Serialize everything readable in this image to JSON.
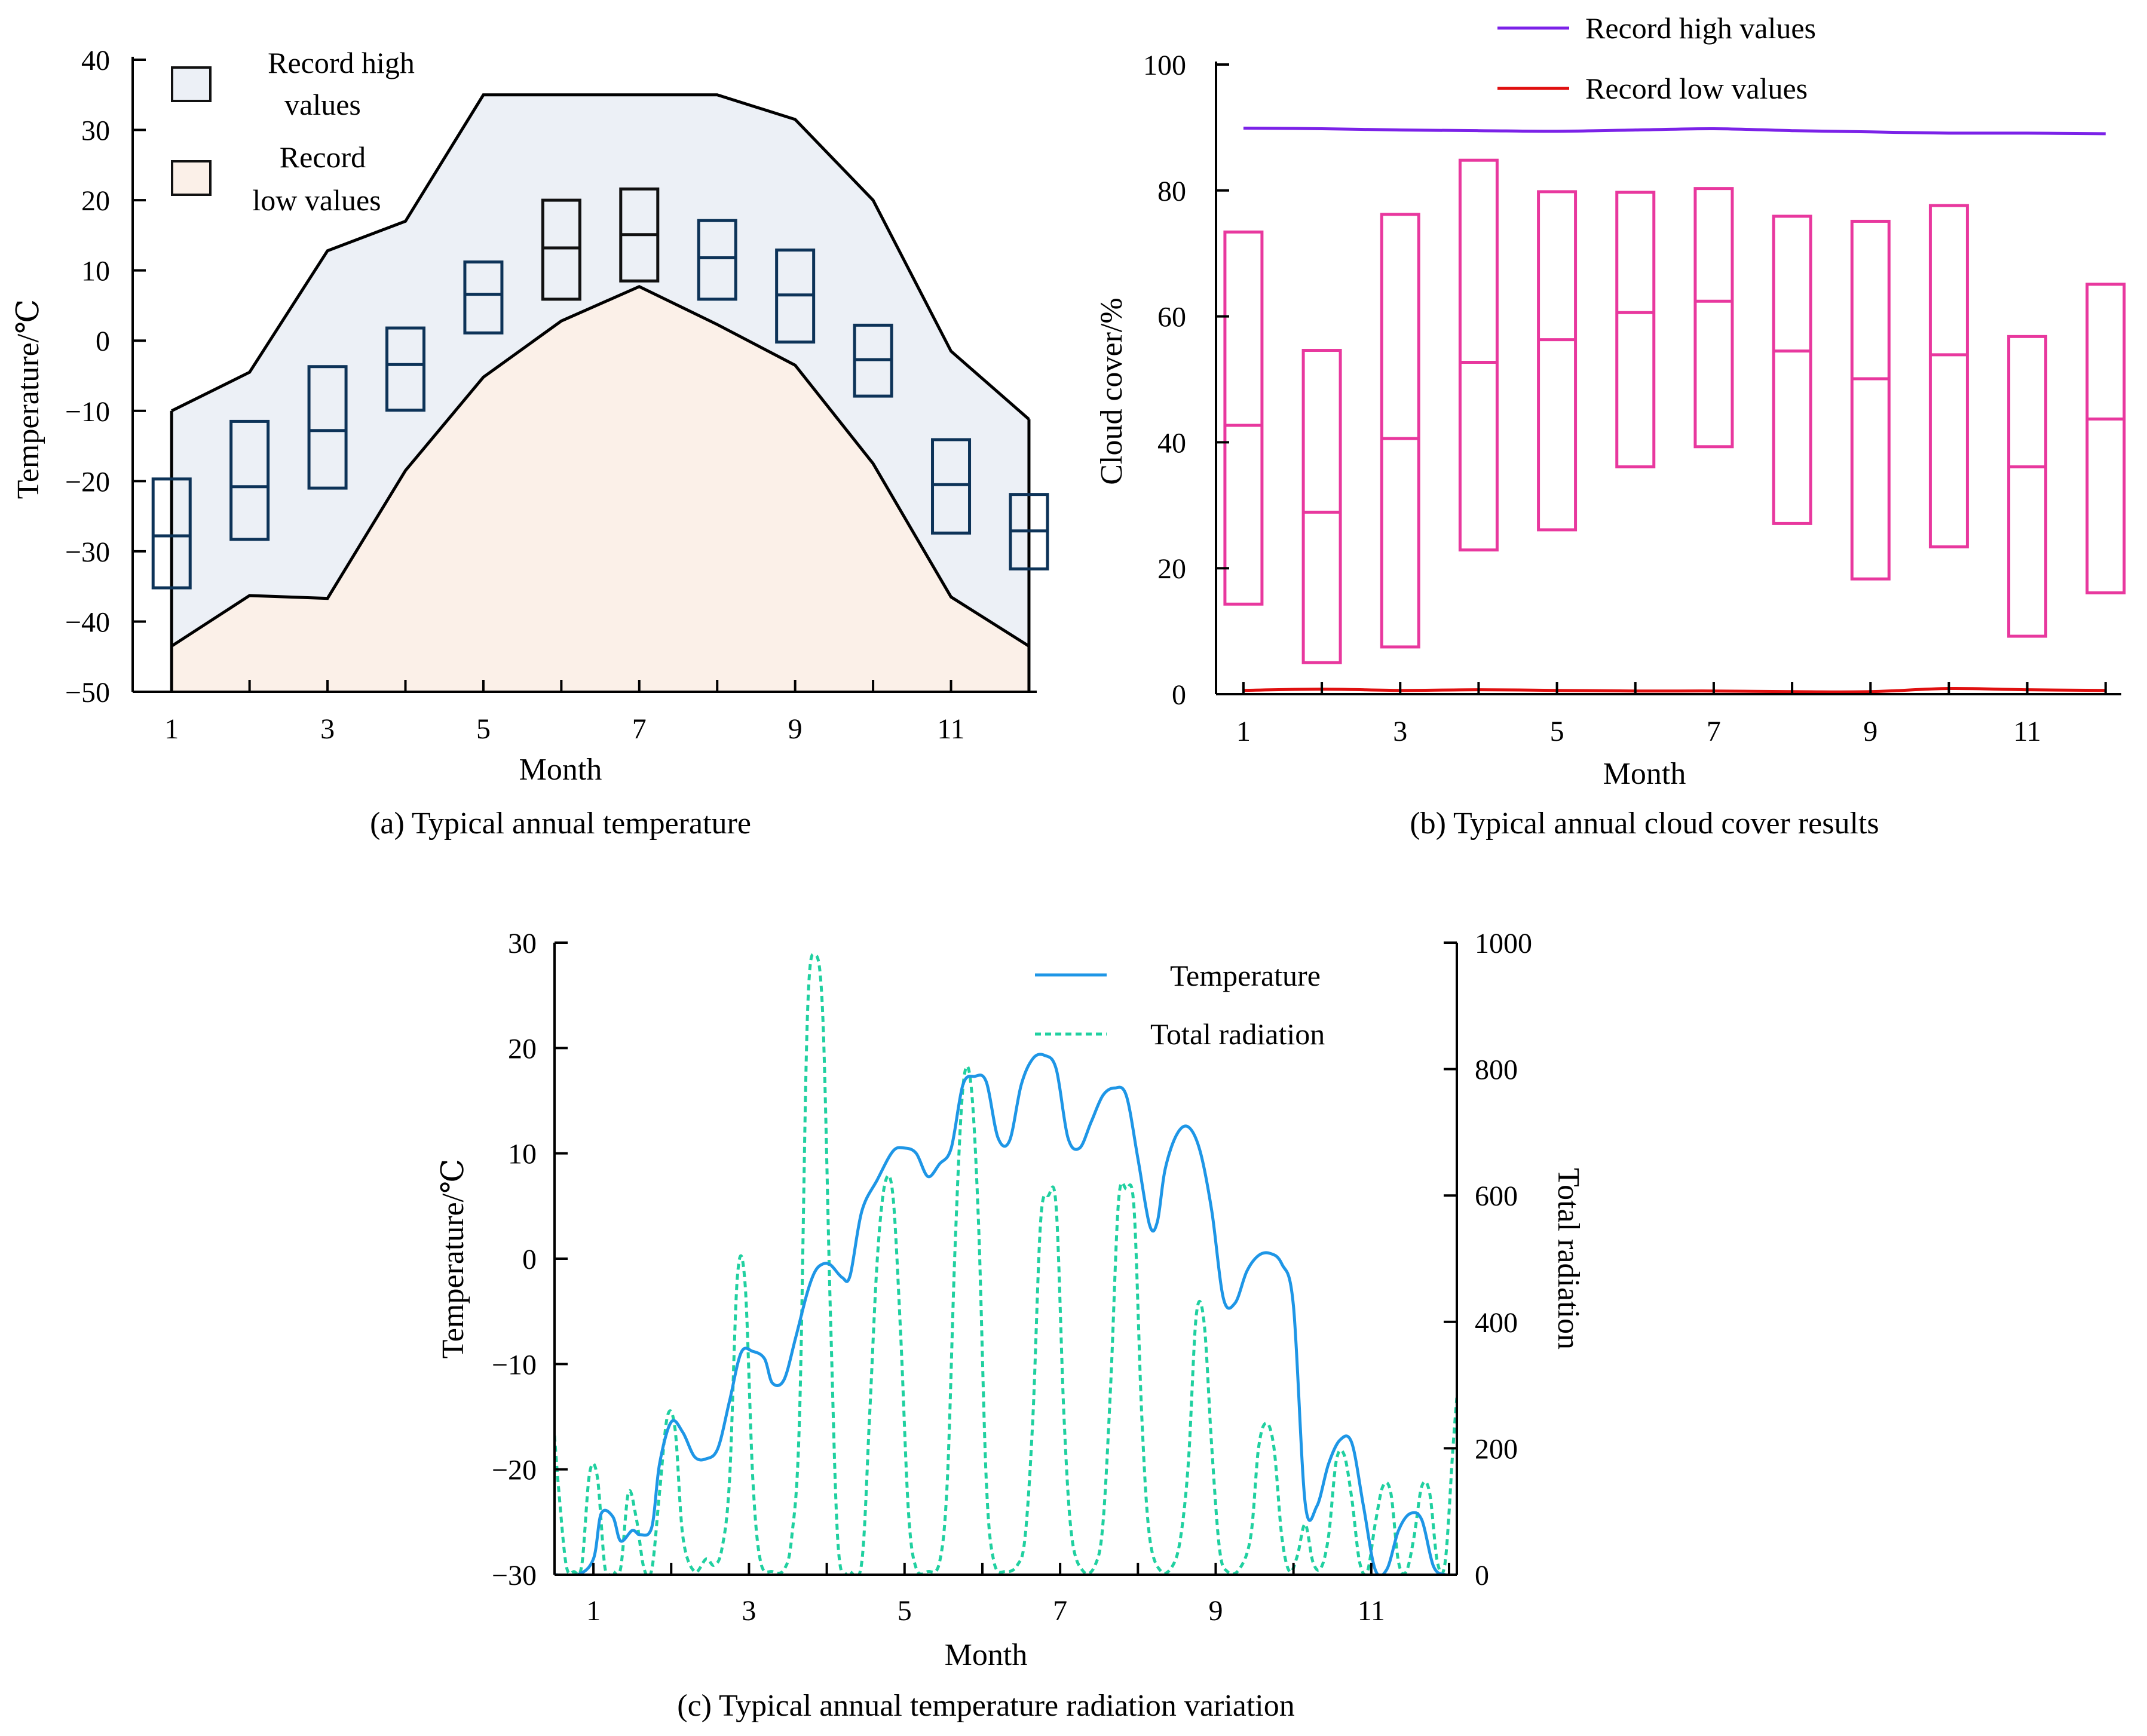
{
  "colors": {
    "axis": "#000000",
    "high_fill": "#ECF0F6",
    "low_fill": "#FBF0E8",
    "box_a_stroke": "#0D3358",
    "box_a_stroke_dark": "#111111",
    "record_high_line": "#7B22E8",
    "record_low_line": "#E01010",
    "box_b_stroke": "#E8389E",
    "temp_line": "#1E96E6",
    "rad_line": "#20D0A0"
  },
  "chart_data": [
    {
      "id": "a",
      "type": "box+area",
      "caption": "(a) Typical annual temperature",
      "xlabel": "Month",
      "ylabel": "Temperature/℃",
      "xlim": [
        0.5,
        12.1
      ],
      "ylim": [
        -50,
        40
      ],
      "xticks": [
        1,
        3,
        5,
        7,
        9,
        11
      ],
      "xtick_marks": [
        1,
        2,
        3,
        4,
        5,
        6,
        7,
        8,
        9,
        10,
        11,
        12
      ],
      "yticks": [
        -50,
        -40,
        -30,
        -20,
        -10,
        0,
        10,
        20,
        30,
        40
      ],
      "ytick_labels": [
        "−50",
        "−40",
        "−30",
        "−20",
        "−10",
        "0",
        "10",
        "20",
        "30",
        "40"
      ],
      "legend": [
        "Record high values",
        "Record low values"
      ],
      "legend_lines": [
        [
          "Record high",
          "values"
        ],
        [
          "Record",
          "low values"
        ]
      ],
      "record_high": {
        "x": [
          1,
          2,
          3,
          4,
          5,
          6,
          7,
          8,
          9,
          10,
          11,
          12
        ],
        "y": [
          -10,
          -4.5,
          12.8,
          17,
          35,
          35,
          35,
          35,
          31.5,
          20,
          -1.5,
          -11.2
        ]
      },
      "record_low": {
        "x": [
          1,
          2,
          3,
          4,
          5,
          6,
          7,
          8,
          9,
          10,
          11,
          12
        ],
        "y": [
          -43.5,
          -36.3,
          -36.7,
          -18.5,
          -5.2,
          2.8,
          7.7,
          2.3,
          -3.5,
          -17.5,
          -36.5,
          -43.5
        ]
      },
      "boxes": [
        {
          "month": 1,
          "low": -35.2,
          "mid": -27.8,
          "high": -19.7
        },
        {
          "month": 2,
          "low": -28.3,
          "mid": -20.8,
          "high": -11.5
        },
        {
          "month": 3,
          "low": -21,
          "mid": -12.8,
          "high": -3.7
        },
        {
          "month": 4,
          "low": -9.9,
          "mid": -3.4,
          "high": 1.8
        },
        {
          "month": 5,
          "low": 1.1,
          "mid": 6.6,
          "high": 11.2
        },
        {
          "month": 6,
          "low": 5.9,
          "mid": 13.2,
          "high": 20
        },
        {
          "month": 7,
          "low": 8.5,
          "mid": 15.1,
          "high": 21.6
        },
        {
          "month": 8,
          "low": 5.9,
          "mid": 11.8,
          "high": 17.1
        },
        {
          "month": 9,
          "low": -0.2,
          "mid": 6.5,
          "high": 12.9
        },
        {
          "month": 10,
          "low": -7.9,
          "mid": -2.7,
          "high": 2.2
        },
        {
          "month": 11,
          "low": -27.4,
          "mid": -20.5,
          "high": -14.1
        },
        {
          "month": 12,
          "low": -32.5,
          "mid": -27.1,
          "high": -21.9
        }
      ]
    },
    {
      "id": "b",
      "type": "box+line",
      "caption": "(b) Typical annual cloud cover results",
      "xlabel": "Month",
      "ylabel": "Cloud cover/%",
      "xlim": [
        0.65,
        12.2
      ],
      "ylim": [
        0,
        100
      ],
      "xticks": [
        1,
        3,
        5,
        7,
        9,
        11
      ],
      "xtick_marks": [
        1,
        2,
        3,
        4,
        5,
        6,
        7,
        8,
        9,
        10,
        11,
        12
      ],
      "yticks": [
        0,
        20,
        40,
        60,
        80,
        100
      ],
      "legend": [
        "Record high values",
        "Record low values"
      ],
      "record_high": {
        "x": [
          1,
          2,
          3,
          4,
          5,
          6,
          7,
          8,
          9,
          10,
          11,
          12
        ],
        "y": [
          89.9,
          89.8,
          89.6,
          89.5,
          89.4,
          89.6,
          89.8,
          89.5,
          89.3,
          89.1,
          89.1,
          89.0
        ]
      },
      "record_low": {
        "x": [
          1,
          2,
          3,
          4,
          5,
          6,
          7,
          8,
          9,
          10,
          11,
          12
        ],
        "y": [
          0.6,
          0.8,
          0.6,
          0.7,
          0.6,
          0.5,
          0.5,
          0.4,
          0.4,
          0.9,
          0.7,
          0.6
        ]
      },
      "boxes": [
        {
          "month": 1,
          "low": 14.3,
          "mid": 42.7,
          "high": 73.4
        },
        {
          "month": 2,
          "low": 5,
          "mid": 28.9,
          "high": 54.6
        },
        {
          "month": 3,
          "low": 7.5,
          "mid": 40.6,
          "high": 76.2
        },
        {
          "month": 4,
          "low": 22.9,
          "mid": 52.7,
          "high": 84.8
        },
        {
          "month": 5,
          "low": 26.1,
          "mid": 56.3,
          "high": 79.8
        },
        {
          "month": 6,
          "low": 36.1,
          "mid": 60.6,
          "high": 79.7
        },
        {
          "month": 7,
          "low": 39.3,
          "mid": 62.4,
          "high": 80.3
        },
        {
          "month": 8,
          "low": 27.1,
          "mid": 54.5,
          "high": 75.9
        },
        {
          "month": 9,
          "low": 18.3,
          "mid": 50.1,
          "high": 75.1
        },
        {
          "month": 10,
          "low": 23.4,
          "mid": 53.9,
          "high": 77.6
        },
        {
          "month": 11,
          "low": 9.2,
          "mid": 36.1,
          "high": 56.8
        },
        {
          "month": 12,
          "low": 16.1,
          "mid": 43.7,
          "high": 65.1
        }
      ]
    },
    {
      "id": "c",
      "type": "line",
      "caption": "(c) Typical annual temperature radiation variation",
      "xlabel": "Month",
      "ylabel": "Temperature/℃",
      "y2label": "Total radiation",
      "xlim": [
        0.5,
        12.1
      ],
      "ylim": [
        -30,
        30
      ],
      "y2lim": [
        0,
        1000
      ],
      "xticks": [
        1,
        3,
        5,
        7,
        9,
        11
      ],
      "xtick_marks": [
        1,
        2,
        3,
        4,
        5,
        6,
        7,
        8,
        9,
        10,
        11,
        12
      ],
      "yticks": [
        -30,
        -20,
        -10,
        0,
        10,
        20,
        30
      ],
      "ytick_labels": [
        "−30",
        "−20",
        "−10",
        "0",
        "10",
        "20",
        "30"
      ],
      "y2ticks": [
        0,
        200,
        400,
        600,
        800,
        1000
      ],
      "legend": [
        "Temperature",
        "Total radiation"
      ],
      "series": [
        {
          "name": "Temperature",
          "axis": "left",
          "x": [
            0.5,
            0.8,
            1.0,
            1.1,
            1.25,
            1.35,
            1.5,
            1.6,
            1.75,
            1.85,
            2.0,
            2.15,
            2.3,
            2.45,
            2.6,
            2.75,
            2.9,
            3.05,
            3.2,
            3.3,
            3.45,
            3.6,
            3.75,
            3.85,
            3.95,
            4.05,
            4.2,
            4.3,
            4.45,
            4.65,
            4.85,
            5.0,
            5.15,
            5.3,
            5.45,
            5.6,
            5.75,
            5.9,
            6.05,
            6.2,
            6.35,
            6.5,
            6.65,
            6.8,
            6.95,
            7.1,
            7.25,
            7.4,
            7.55,
            7.7,
            7.85,
            8.0,
            8.15,
            8.25,
            8.35,
            8.5,
            8.65,
            8.8,
            8.95,
            9.1,
            9.25,
            9.4,
            9.55,
            9.7,
            9.85,
            10.0,
            10.15,
            10.3,
            10.45,
            10.6,
            10.75,
            10.9,
            11.05,
            11.2,
            11.35,
            11.5,
            11.65,
            11.8,
            11.95,
            12.1
          ],
          "y": [
            -30,
            -30,
            -28.5,
            -24.2,
            -24.5,
            -26.8,
            -25.8,
            -26.2,
            -25.5,
            -19.5,
            -15.5,
            -16.5,
            -18.8,
            -19,
            -18,
            -13.5,
            -8.9,
            -8.8,
            -9.5,
            -11.8,
            -11.5,
            -7.5,
            -3.2,
            -1.2,
            -0.5,
            -0.6,
            -1.8,
            -1.6,
            4.5,
            7.5,
            10.2,
            10.5,
            10,
            7.8,
            9,
            10.5,
            16.5,
            17.3,
            16.8,
            11.5,
            11.2,
            16.5,
            19,
            19.3,
            18,
            11.5,
            10.5,
            13,
            15.5,
            16.2,
            15.5,
            9.5,
            3.2,
            3.5,
            8.5,
            11.8,
            12.5,
            10.2,
            4.5,
            -3.8,
            -4.2,
            -1.2,
            0.3,
            0.5,
            -0.5,
            -4.5,
            -23.2,
            -23.5,
            -19.5,
            -17.2,
            -17.5,
            -23.5,
            -29.5,
            -29.5,
            -25.8,
            -24.2,
            -24.8,
            -29.2,
            -30,
            -30
          ]
        },
        {
          "name": "Total radiation",
          "axis": "right",
          "x": [
            0.5,
            0.55,
            0.65,
            0.75,
            0.85,
            0.95,
            1.05,
            1.15,
            1.25,
            1.35,
            1.45,
            1.55,
            1.65,
            1.75,
            1.85,
            1.95,
            2.05,
            2.15,
            2.3,
            2.45,
            2.55,
            2.65,
            2.75,
            2.85,
            2.95,
            3.05,
            3.15,
            3.3,
            3.45,
            3.55,
            3.65,
            3.75,
            3.85,
            3.95,
            4.05,
            4.15,
            4.3,
            4.45,
            4.55,
            4.65,
            4.75,
            4.85,
            4.95,
            5.05,
            5.15,
            5.3,
            5.45,
            5.55,
            5.65,
            5.75,
            5.85,
            5.95,
            6.05,
            6.15,
            6.3,
            6.45,
            6.55,
            6.65,
            6.75,
            6.85,
            6.95,
            7.05,
            7.15,
            7.3,
            7.45,
            7.55,
            7.65,
            7.75,
            7.85,
            7.95,
            8.05,
            8.15,
            8.3,
            8.45,
            8.55,
            8.65,
            8.75,
            8.85,
            8.95,
            9.05,
            9.15,
            9.3,
            9.45,
            9.55,
            9.65,
            9.75,
            9.85,
            9.95,
            10.05,
            10.15,
            10.25,
            10.35,
            10.45,
            10.55,
            10.65,
            10.75,
            10.85,
            10.95,
            11.05,
            11.15,
            11.25,
            11.35,
            11.45,
            11.55,
            11.65,
            11.75,
            11.85,
            11.95,
            12.05,
            12.1
          ],
          "y": [
            220,
            140,
            15,
            5,
            15,
            160,
            155,
            10,
            5,
            10,
            130,
            90,
            10,
            8,
            130,
            250,
            230,
            60,
            5,
            25,
            15,
            40,
            150,
            470,
            460,
            150,
            20,
            5,
            8,
            60,
            250,
            880,
            980,
            880,
            400,
            40,
            5,
            20,
            250,
            500,
            620,
            600,
            380,
            100,
            10,
            5,
            20,
            150,
            520,
            770,
            780,
            560,
            150,
            20,
            5,
            15,
            60,
            250,
            560,
            600,
            580,
            250,
            60,
            5,
            15,
            80,
            300,
            590,
            610,
            580,
            250,
            60,
            5,
            15,
            60,
            180,
            410,
            400,
            200,
            40,
            5,
            8,
            60,
            200,
            240,
            200,
            60,
            5,
            30,
            80,
            20,
            10,
            60,
            180,
            190,
            120,
            20,
            5,
            80,
            140,
            130,
            20,
            5,
            60,
            140,
            130,
            20,
            20,
            200,
            280
          ]
        }
      ]
    }
  ]
}
